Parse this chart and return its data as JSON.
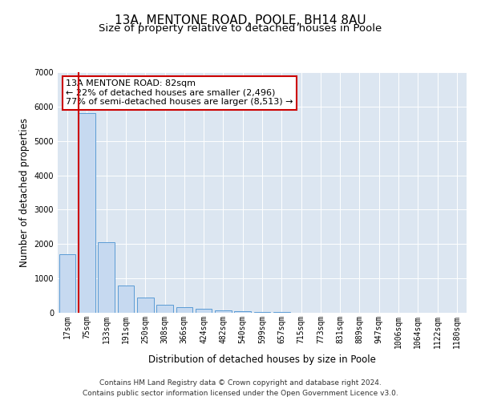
{
  "title": "13A, MENTONE ROAD, POOLE, BH14 8AU",
  "subtitle": "Size of property relative to detached houses in Poole",
  "xlabel": "Distribution of detached houses by size in Poole",
  "ylabel": "Number of detached properties",
  "categories": [
    "17sqm",
    "75sqm",
    "133sqm",
    "191sqm",
    "250sqm",
    "308sqm",
    "366sqm",
    "424sqm",
    "482sqm",
    "540sqm",
    "599sqm",
    "657sqm",
    "715sqm",
    "773sqm",
    "831sqm",
    "889sqm",
    "947sqm",
    "1006sqm",
    "1064sqm",
    "1122sqm",
    "1180sqm"
  ],
  "values": [
    1700,
    5800,
    2050,
    800,
    450,
    230,
    160,
    110,
    70,
    50,
    30,
    15,
    10,
    0,
    0,
    0,
    0,
    0,
    0,
    0,
    0
  ],
  "bar_color": "#c6d9f0",
  "bar_edge_color": "#5b9bd5",
  "property_line_color": "#cc0000",
  "annotation_text": "13A MENTONE ROAD: 82sqm\n← 22% of detached houses are smaller (2,496)\n77% of semi-detached houses are larger (8,513) →",
  "annotation_box_color": "#ffffff",
  "annotation_box_edge": "#cc0000",
  "ylim": [
    0,
    7000
  ],
  "yticks": [
    0,
    1000,
    2000,
    3000,
    4000,
    5000,
    6000,
    7000
  ],
  "plot_bg_color": "#dce6f1",
  "footer_line1": "Contains HM Land Registry data © Crown copyright and database right 2024.",
  "footer_line2": "Contains public sector information licensed under the Open Government Licence v3.0.",
  "title_fontsize": 11,
  "subtitle_fontsize": 9.5,
  "tick_fontsize": 7,
  "ylabel_fontsize": 8.5,
  "xlabel_fontsize": 8.5,
  "footer_fontsize": 6.5,
  "annot_fontsize": 8
}
